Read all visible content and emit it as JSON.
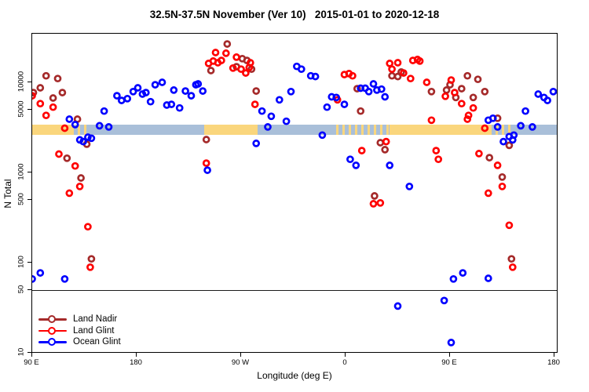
{
  "title": "32.5N-37.5N November (Ver 10)   2015-01-01 to 2020-12-18",
  "colors": {
    "land_nadir": "#A52A2A",
    "land_glint": "#FF0000",
    "ocean_glint": "#0000FF",
    "strip_land": "#FAD67D",
    "strip_ocean": "#A9BFD9",
    "axis": "#000000",
    "reference_line": "#1a1a1a"
  },
  "x_axis": {
    "label": "Longitude (deg E)",
    "ticks": [
      {
        "lon": 90,
        "label": "90 E"
      },
      {
        "lon": 180,
        "label": "180"
      },
      {
        "lon": 270,
        "label": "90 W"
      },
      {
        "lon": 360,
        "label": "0"
      },
      {
        "lon": 450,
        "label": "90 E"
      },
      {
        "lon": 540,
        "label": "180"
      }
    ]
  },
  "y_axis": {
    "label": "N Total",
    "scale": "log10",
    "ticks": [
      {
        "value": 10000,
        "label": "10000"
      },
      {
        "value": 5000,
        "label": "5000"
      },
      {
        "value": 1000,
        "label": "1000"
      },
      {
        "value": 500,
        "label": "500"
      },
      {
        "value": 100,
        "label": "100"
      },
      {
        "value": 50,
        "label": "50"
      },
      {
        "value": 10,
        "label": "10"
      }
    ]
  },
  "reference_line_value": 50,
  "legend": {
    "items": [
      {
        "label": "Land Nadir",
        "color_key": "land_nadir"
      },
      {
        "label": "Land Glint",
        "color_key": "land_glint"
      },
      {
        "label": "Ocean Glint",
        "color_key": "ocean_glint"
      }
    ]
  },
  "map_strip": {
    "description": "land/ocean strip for 32.5N-37.5N drawn across plot near N=3000",
    "segments": [
      {
        "type": "land",
        "from": 90,
        "to": 124
      },
      {
        "type": "speckle",
        "from": 124,
        "to": 138
      },
      {
        "type": "ocean",
        "from": 138,
        "to": 238
      },
      {
        "type": "land",
        "from": 238,
        "to": 284
      },
      {
        "type": "ocean",
        "from": 284,
        "to": 352
      },
      {
        "type": "speckle",
        "from": 352,
        "to": 398
      },
      {
        "type": "land",
        "from": 398,
        "to": 484
      },
      {
        "type": "speckle",
        "from": 484,
        "to": 504
      },
      {
        "type": "ocean",
        "from": 504,
        "to": 541
      }
    ]
  },
  "chart_data": {
    "type": "scatter",
    "title": "32.5N-37.5N November (Ver 10)   2015-01-01 to 2020-12-18",
    "xlabel": "Longitude (deg E)",
    "ylabel": "N Total",
    "x_note": "axis runs 90E eastward wrapping past 180 and 0 back to 180; x stored as 90..540 deg",
    "xlim": [
      90,
      540
    ],
    "ylim_log": [
      10,
      33000
    ],
    "legend_position": "bottom-left",
    "grid": false,
    "series": [
      {
        "name": "Land Nadir",
        "color_key": "land_nadir",
        "points": [
          [
            102,
            11800
          ],
          [
            112,
            11000
          ],
          [
            97,
            8700
          ],
          [
            91,
            7700
          ],
          [
            116,
            7700
          ],
          [
            108,
            6700
          ],
          [
            129,
            3900
          ],
          [
            120,
            1440
          ],
          [
            137,
            2060
          ],
          [
            132,
            870
          ],
          [
            141,
            110
          ],
          [
            258,
            26600
          ],
          [
            271,
            18300
          ],
          [
            275,
            17500
          ],
          [
            279,
            14000
          ],
          [
            244,
            13500
          ],
          [
            266,
            14900
          ],
          [
            283,
            8000
          ],
          [
            240,
            2320
          ],
          [
            370,
            8500
          ],
          [
            373,
            4800
          ],
          [
            408,
            13000
          ],
          [
            400,
            11800
          ],
          [
            405,
            11600
          ],
          [
            434,
            7900
          ],
          [
            390,
            2140
          ],
          [
            394,
            1790
          ],
          [
            385,
            550
          ],
          [
            450,
            9400
          ],
          [
            465,
            11800
          ],
          [
            474,
            10800
          ],
          [
            447,
            8200
          ],
          [
            455,
            6800
          ],
          [
            460,
            8500
          ],
          [
            480,
            7900
          ],
          [
            470,
            6800
          ],
          [
            491,
            4000
          ],
          [
            501,
            2000
          ],
          [
            484,
            1460
          ],
          [
            495,
            890
          ],
          [
            503,
            110
          ]
        ]
      },
      {
        "name": "Land Glint",
        "color_key": "land_glint",
        "points": [
          [
            90,
            7100
          ],
          [
            97,
            5800
          ],
          [
            108,
            5300
          ],
          [
            102,
            4300
          ],
          [
            118,
            3100
          ],
          [
            113,
            1600
          ],
          [
            127,
            1180
          ],
          [
            131,
            700
          ],
          [
            122,
            590
          ],
          [
            138,
            250
          ],
          [
            140,
            89
          ],
          [
            248,
            21400
          ],
          [
            257,
            21000
          ],
          [
            266,
            19000
          ],
          [
            246,
            17200
          ],
          [
            253,
            17500
          ],
          [
            242,
            16200
          ],
          [
            250,
            16500
          ],
          [
            263,
            14400
          ],
          [
            270,
            14000
          ],
          [
            278,
            16500
          ],
          [
            274,
            12700
          ],
          [
            277,
            14600
          ],
          [
            282,
            5700
          ],
          [
            240,
            1270
          ],
          [
            359,
            12200
          ],
          [
            363,
            12500
          ],
          [
            366,
            11800
          ],
          [
            353,
            6400
          ],
          [
            398,
            16200
          ],
          [
            400,
            14000
          ],
          [
            405,
            16500
          ],
          [
            410,
            12700
          ],
          [
            416,
            11000
          ],
          [
            418,
            17500
          ],
          [
            422,
            17900
          ],
          [
            424,
            17200
          ],
          [
            430,
            10000
          ],
          [
            434,
            3800
          ],
          [
            395,
            2200
          ],
          [
            374,
            1750
          ],
          [
            384,
            450
          ],
          [
            390,
            460
          ],
          [
            451,
            10600
          ],
          [
            446,
            7000
          ],
          [
            454,
            7700
          ],
          [
            460,
            5800
          ],
          [
            470,
            5200
          ],
          [
            466,
            4300
          ],
          [
            465,
            3900
          ],
          [
            480,
            3100
          ],
          [
            438,
            1750
          ],
          [
            440,
            1400
          ],
          [
            475,
            1620
          ],
          [
            491,
            1200
          ],
          [
            495,
            700
          ],
          [
            483,
            590
          ],
          [
            501,
            260
          ],
          [
            504,
            89
          ]
        ]
      },
      {
        "name": "Ocean Glint",
        "color_key": "ocean_glint",
        "points": [
          [
            122,
            3900
          ],
          [
            127,
            3400
          ],
          [
            152,
            4800
          ],
          [
            163,
            7100
          ],
          [
            167,
            6300
          ],
          [
            172,
            6600
          ],
          [
            177,
            7900
          ],
          [
            181,
            8700
          ],
          [
            185,
            7400
          ],
          [
            188,
            7700
          ],
          [
            192,
            6100
          ],
          [
            196,
            9400
          ],
          [
            202,
            10000
          ],
          [
            206,
            5600
          ],
          [
            148,
            3300
          ],
          [
            156,
            3200
          ],
          [
            131,
            2300
          ],
          [
            138,
            2460
          ],
          [
            141,
            2400
          ],
          [
            134,
            2200
          ],
          [
            97,
            77
          ],
          [
            90,
            66
          ],
          [
            118,
            66
          ],
          [
            212,
            8200
          ],
          [
            222,
            8000
          ],
          [
            227,
            7100
          ],
          [
            231,
            9400
          ],
          [
            233,
            9600
          ],
          [
            237,
            8000
          ],
          [
            210,
            5700
          ],
          [
            217,
            5200
          ],
          [
            318,
            15000
          ],
          [
            322,
            14000
          ],
          [
            288,
            4800
          ],
          [
            296,
            4200
          ],
          [
            303,
            6400
          ],
          [
            309,
            3700
          ],
          [
            313,
            7900
          ],
          [
            293,
            3200
          ],
          [
            283,
            2100
          ],
          [
            241,
            1060
          ],
          [
            330,
            11800
          ],
          [
            334,
            11600
          ],
          [
            373,
            8600
          ],
          [
            377,
            8600
          ],
          [
            380,
            7900
          ],
          [
            384,
            9600
          ],
          [
            387,
            8200
          ],
          [
            391,
            8400
          ],
          [
            394,
            6900
          ],
          [
            348,
            6900
          ],
          [
            352,
            6800
          ],
          [
            359,
            5700
          ],
          [
            344,
            5300
          ],
          [
            340,
            2600
          ],
          [
            364,
            1400
          ],
          [
            369,
            1200
          ],
          [
            398,
            1200
          ],
          [
            415,
            700
          ],
          [
            405,
            33
          ],
          [
            483,
            3800
          ],
          [
            487,
            4000
          ],
          [
            491,
            3200
          ],
          [
            511,
            3300
          ],
          [
            521,
            3200
          ],
          [
            501,
            2500
          ],
          [
            505,
            2600
          ],
          [
            496,
            2200
          ],
          [
            504,
            2300
          ],
          [
            526,
            7400
          ],
          [
            531,
            6800
          ],
          [
            534,
            6300
          ],
          [
            539,
            7900
          ],
          [
            515,
            4800
          ],
          [
            453,
            66
          ],
          [
            461,
            77
          ],
          [
            483,
            67
          ],
          [
            445,
            38
          ],
          [
            451,
            13
          ]
        ]
      }
    ]
  }
}
